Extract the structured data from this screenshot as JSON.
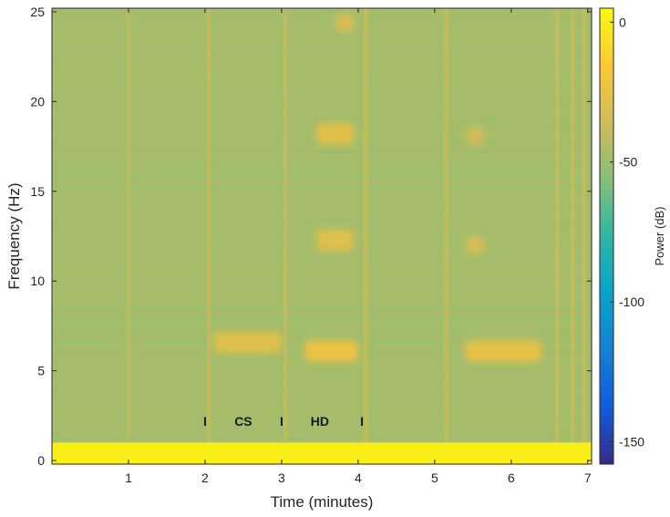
{
  "chart_data": {
    "type": "heatmap",
    "title": "",
    "xlabel": "Time (minutes)",
    "ylabel": "Frequency (Hz)",
    "xlim": [
      0,
      7.05
    ],
    "ylim": [
      -0.2,
      25.2
    ],
    "xticks": [
      "1",
      "2",
      "3",
      "4",
      "5",
      "6",
      "7"
    ],
    "xtick_values": [
      1,
      2,
      3,
      4,
      5,
      6,
      7
    ],
    "yticks": [
      "0",
      "5",
      "10",
      "15",
      "20",
      "25"
    ],
    "ytick_values": [
      0,
      5,
      10,
      15,
      20,
      25
    ],
    "colorbar": {
      "label": "Power (dB)",
      "range": [
        -158,
        5
      ],
      "ticks": [
        "0",
        "-50",
        "-100",
        "-150"
      ],
      "tick_values": [
        0,
        -50,
        -100,
        -150
      ],
      "colormap": "parula"
    },
    "background_power_db": -48,
    "low_frequency_band": {
      "freq_max_hz": 1.0,
      "power_db": 0
    },
    "blobs": [
      {
        "t_start": 2.1,
        "t_end": 3.0,
        "f_center": 6.6,
        "f_halfwidth": 0.6,
        "power_db": -30
      },
      {
        "t_start": 3.3,
        "t_end": 4.0,
        "f_center": 6.1,
        "f_halfwidth": 0.6,
        "power_db": -24
      },
      {
        "t_start": 5.4,
        "t_end": 6.4,
        "f_center": 6.1,
        "f_halfwidth": 0.6,
        "power_db": -26
      },
      {
        "t_start": 3.45,
        "t_end": 3.95,
        "f_center": 12.3,
        "f_halfwidth": 0.6,
        "power_db": -30
      },
      {
        "t_start": 3.45,
        "t_end": 3.95,
        "f_center": 18.2,
        "f_halfwidth": 0.6,
        "power_db": -29
      },
      {
        "t_start": 3.7,
        "t_end": 3.95,
        "f_center": 24.4,
        "f_halfwidth": 0.5,
        "power_db": -32
      },
      {
        "t_start": 5.4,
        "t_end": 5.65,
        "f_center": 12.0,
        "f_halfwidth": 0.5,
        "power_db": -33
      },
      {
        "t_start": 5.4,
        "t_end": 5.65,
        "f_center": 18.1,
        "f_halfwidth": 0.5,
        "power_db": -35
      }
    ],
    "vertical_streaks": [
      {
        "t": 1.0,
        "power_db": -38
      },
      {
        "t": 2.05,
        "power_db": -34
      },
      {
        "t": 3.05,
        "power_db": -34
      },
      {
        "t": 4.1,
        "power_db": -30
      },
      {
        "t": 5.15,
        "power_db": -30
      },
      {
        "t": 6.6,
        "power_db": -32
      },
      {
        "t": 6.8,
        "power_db": -32
      },
      {
        "t": 6.95,
        "power_db": -30
      }
    ],
    "annotations": [
      {
        "text": "I",
        "x": 2.0,
        "y": 2.2
      },
      {
        "text": "CS",
        "x": 2.5,
        "y": 2.2
      },
      {
        "text": "I",
        "x": 3.0,
        "y": 2.2
      },
      {
        "text": "HD",
        "x": 3.5,
        "y": 2.2
      },
      {
        "text": "I",
        "x": 4.05,
        "y": 2.2
      }
    ]
  }
}
